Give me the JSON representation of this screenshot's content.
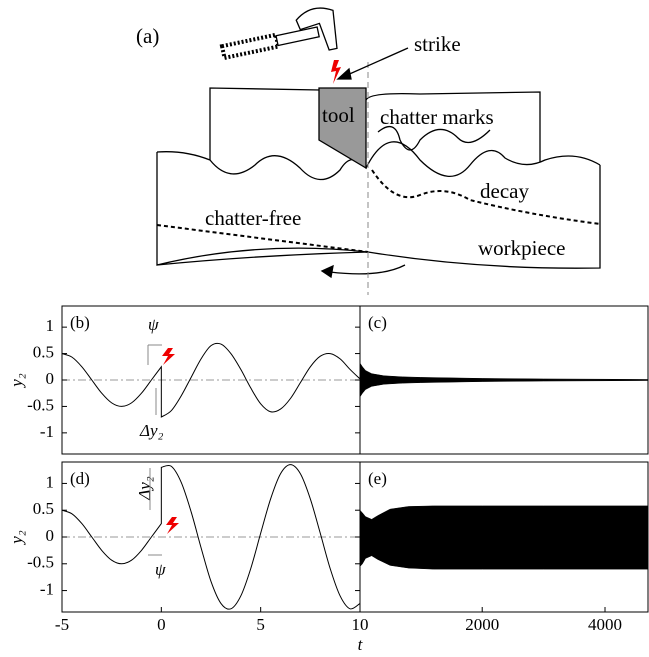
{
  "diagram": {
    "panel_label": "(a)",
    "strike": "strike",
    "tool": "tool",
    "chatter_marks": "chatter marks",
    "decay": "decay",
    "chatter_free": "chatter-free",
    "workpiece": "workpiece"
  },
  "chart_data": [
    {
      "type": "line",
      "panel_label": "(b)",
      "ylabel": "y₂",
      "color": "#000000",
      "x": [
        -5,
        -4.5,
        -4,
        -3.5,
        -3,
        -2.5,
        -2,
        -1.5,
        -1,
        -0.5,
        0,
        0,
        0.5,
        1,
        1.5,
        2,
        2.5,
        3,
        3.5,
        4,
        4.5,
        5,
        5.5,
        6,
        6.5,
        7,
        7.5,
        8,
        8.5,
        9,
        9.5,
        10
      ],
      "values": [
        0.5,
        0.433,
        0.25,
        0,
        -0.25,
        -0.433,
        -0.5,
        -0.433,
        -0.25,
        0,
        0.25,
        -0.7,
        -0.58,
        -0.3,
        0.05,
        0.4,
        0.65,
        0.68,
        0.5,
        0.2,
        -0.15,
        -0.45,
        -0.6,
        -0.55,
        -0.35,
        -0.05,
        0.25,
        0.45,
        0.5,
        0.4,
        0.2,
        0.02
      ],
      "xlim": [
        -5,
        10
      ],
      "ylim": [
        -1.4,
        1.4
      ],
      "yticks": [
        -1,
        -0.5,
        0,
        0.5,
        1
      ],
      "reference_line": 0,
      "annotations": {
        "phase": "ψ",
        "jump": "Δy₂"
      }
    },
    {
      "type": "band",
      "panel_label": "(c)",
      "color": "#000000",
      "x": [
        10,
        50,
        100,
        200,
        400,
        700,
        1000,
        1500,
        2000,
        3000,
        4000,
        4700
      ],
      "upper": [
        0.32,
        0.25,
        0.18,
        0.12,
        0.08,
        0.06,
        0.05,
        0.04,
        0.03,
        0.02,
        0.015,
        0.01
      ],
      "lower": [
        -0.32,
        -0.25,
        -0.18,
        -0.12,
        -0.08,
        -0.06,
        -0.05,
        -0.04,
        -0.03,
        -0.02,
        -0.015,
        -0.01
      ],
      "xlim": [
        10,
        4700
      ],
      "ylim": [
        -1.4,
        1.4
      ]
    },
    {
      "type": "line",
      "panel_label": "(d)",
      "ylabel": "y₂",
      "xlabel": "t",
      "color": "#000000",
      "x": [
        -5,
        -4.5,
        -4,
        -3.5,
        -3,
        -2.5,
        -2,
        -1.5,
        -1,
        -0.5,
        0,
        0,
        0.5,
        1,
        1.5,
        2,
        2.5,
        3,
        3.5,
        4,
        4.5,
        5,
        5.5,
        6,
        6.5,
        7,
        7.5,
        8,
        8.5,
        9,
        9.5,
        10
      ],
      "values": [
        0.5,
        0.433,
        0.25,
        0,
        -0.25,
        -0.433,
        -0.5,
        -0.433,
        -0.25,
        0,
        0.25,
        1.3,
        1.32,
        1.02,
        0.47,
        -0.2,
        -0.83,
        -1.24,
        -1.34,
        -1.1,
        -0.59,
        0.07,
        0.71,
        1.18,
        1.35,
        1.18,
        0.71,
        0.07,
        -0.59,
        -1.1,
        -1.34,
        -1.24
      ],
      "xlim": [
        -5,
        10
      ],
      "xticks": [
        -5,
        0,
        5,
        10
      ],
      "ylim": [
        -1.4,
        1.4
      ],
      "yticks": [
        -1,
        -0.5,
        0,
        0.5,
        1
      ],
      "reference_line": 0,
      "annotations": {
        "jump": "Δy₂",
        "phase": "ψ"
      }
    },
    {
      "type": "band",
      "panel_label": "(e)",
      "color": "#000000",
      "x": [
        10,
        50,
        100,
        200,
        300,
        500,
        800,
        1200,
        2000,
        3000,
        4000,
        4700
      ],
      "upper": [
        0.5,
        0.45,
        0.38,
        0.33,
        0.4,
        0.52,
        0.57,
        0.58,
        0.58,
        0.58,
        0.58,
        0.58
      ],
      "lower": [
        -0.55,
        -0.5,
        -0.4,
        -0.35,
        -0.42,
        -0.53,
        -0.58,
        -0.6,
        -0.6,
        -0.6,
        -0.6,
        -0.6
      ],
      "xlim": [
        10,
        4700
      ],
      "xticks": [
        2000,
        4000
      ],
      "ylim": [
        -1.4,
        1.4
      ]
    }
  ]
}
